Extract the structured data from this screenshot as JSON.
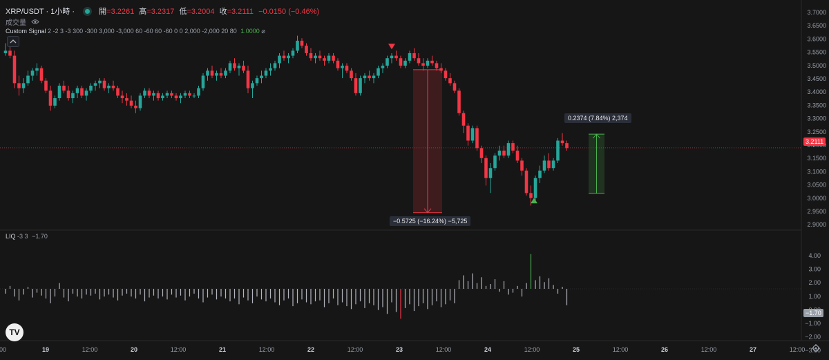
{
  "header": {
    "symbol": "XRP/USDT · 1小時 ·",
    "open_label": "開",
    "open": "=3.2261",
    "high_label": "高",
    "high": "=3.2317",
    "low_label": "低",
    "low": "=3.2004",
    "close_label": "收",
    "close": "=3.2111",
    "change": "−0.0150 (−0.46%)",
    "volume_label": "成交量",
    "indicator_name": "Custom Signal",
    "indicator_args": "2 -2 3 -3 300 -300 3,000 -3,000 60 -60 60 -60 0 0 2,000 -2,000 20 80",
    "indicator_value": "1.0000",
    "indicator_suffix": "⌀",
    "liq_name": "LIQ",
    "liq_args": "-3 3",
    "liq_value": "−1.70"
  },
  "colors": {
    "up": "#26a69a",
    "down": "#f23645",
    "green_bright": "#4caf50",
    "background": "#161616",
    "axis_text": "#9aa0aa",
    "liq_bar": "#b2b5be",
    "measure_red": "#f23645",
    "measure_green": "#4caf50"
  },
  "measurements": {
    "drop": "−0.5725 (−16.24%) −5,725",
    "rise": "0.2374 (7.84%) 2,374"
  },
  "price_axis": {
    "ticks": [
      "3.7000",
      "3.6500",
      "3.6000",
      "3.5500",
      "3.5000",
      "3.4500",
      "3.4000",
      "3.3500",
      "3.3000",
      "3.2500",
      "3.2000",
      "3.1500",
      "3.1000",
      "3.0500",
      "3.0000",
      "2.9500",
      "2.9000"
    ],
    "current": "3.2111"
  },
  "liq_axis": {
    "ticks": [
      "4.00",
      "3.00",
      "2.00",
      "1.00",
      "0.00",
      "−1.00",
      "−2.00",
      "−3.00"
    ],
    "current": "−1.70"
  },
  "time_axis": {
    "labels": [
      "00",
      "19",
      "12:00",
      "20",
      "12:00",
      "21",
      "12:00",
      "22",
      "12:00",
      "23",
      "12:00",
      "24",
      "12:00",
      "25",
      "12:00",
      "26",
      "12:00",
      "27",
      "12:00"
    ]
  },
  "icons": [
    "eye-icon",
    "chevron-up-icon",
    "tradingview-logo",
    "settings-icon"
  ],
  "logo_text": "TV",
  "chart_data": {
    "type": "candlestick",
    "price_range": [
      2.89,
      3.72
    ],
    "drop": {
      "from": 3.524,
      "to": 2.9515,
      "change": -0.5725,
      "percent": -16.24
    },
    "rise": {
      "from": 3.0286,
      "to": 3.266,
      "change": 0.2374,
      "percent": 7.84
    },
    "sell_signal_price": 3.6,
    "buy_signal_price": 3.0,
    "ohlc": [
      [
        3.59,
        3.63,
        3.58,
        3.6
      ],
      [
        3.6,
        3.62,
        3.57,
        3.58
      ],
      [
        3.58,
        3.6,
        3.45,
        3.47
      ],
      [
        3.47,
        3.5,
        3.42,
        3.45
      ],
      [
        3.45,
        3.49,
        3.43,
        3.47
      ],
      [
        3.47,
        3.52,
        3.46,
        3.5
      ],
      [
        3.5,
        3.53,
        3.48,
        3.52
      ],
      [
        3.52,
        3.55,
        3.5,
        3.53
      ],
      [
        3.53,
        3.54,
        3.47,
        3.48
      ],
      [
        3.48,
        3.49,
        3.43,
        3.44
      ],
      [
        3.44,
        3.46,
        3.36,
        3.38
      ],
      [
        3.38,
        3.42,
        3.37,
        3.41
      ],
      [
        3.41,
        3.47,
        3.4,
        3.46
      ],
      [
        3.46,
        3.48,
        3.43,
        3.44
      ],
      [
        3.44,
        3.46,
        3.4,
        3.41
      ],
      [
        3.41,
        3.44,
        3.39,
        3.43
      ],
      [
        3.43,
        3.46,
        3.41,
        3.45
      ],
      [
        3.45,
        3.46,
        3.41,
        3.42
      ],
      [
        3.42,
        3.45,
        3.4,
        3.44
      ],
      [
        3.44,
        3.47,
        3.43,
        3.46
      ],
      [
        3.46,
        3.48,
        3.44,
        3.47
      ],
      [
        3.47,
        3.49,
        3.45,
        3.48
      ],
      [
        3.48,
        3.49,
        3.44,
        3.45
      ],
      [
        3.45,
        3.47,
        3.43,
        3.46
      ],
      [
        3.46,
        3.48,
        3.44,
        3.45
      ],
      [
        3.45,
        3.46,
        3.41,
        3.42
      ],
      [
        3.42,
        3.44,
        3.39,
        3.41
      ],
      [
        3.41,
        3.43,
        3.38,
        3.4
      ],
      [
        3.4,
        3.42,
        3.37,
        3.38
      ],
      [
        3.38,
        3.4,
        3.35,
        3.37
      ],
      [
        3.37,
        3.43,
        3.36,
        3.42
      ],
      [
        3.42,
        3.45,
        3.41,
        3.44
      ],
      [
        3.44,
        3.45,
        3.41,
        3.42
      ],
      [
        3.42,
        3.44,
        3.4,
        3.43
      ],
      [
        3.43,
        3.44,
        3.4,
        3.41
      ],
      [
        3.41,
        3.43,
        3.4,
        3.42
      ],
      [
        3.42,
        3.44,
        3.41,
        3.43
      ],
      [
        3.43,
        3.44,
        3.41,
        3.42
      ],
      [
        3.42,
        3.43,
        3.4,
        3.41
      ],
      [
        3.41,
        3.43,
        3.39,
        3.42
      ],
      [
        3.42,
        3.44,
        3.41,
        3.43
      ],
      [
        3.43,
        3.44,
        3.41,
        3.42
      ],
      [
        3.42,
        3.43,
        3.41,
        3.42
      ],
      [
        3.42,
        3.46,
        3.41,
        3.45
      ],
      [
        3.45,
        3.51,
        3.44,
        3.5
      ],
      [
        3.5,
        3.53,
        3.48,
        3.52
      ],
      [
        3.52,
        3.54,
        3.49,
        3.5
      ],
      [
        3.5,
        3.52,
        3.48,
        3.51
      ],
      [
        3.51,
        3.53,
        3.49,
        3.5
      ],
      [
        3.5,
        3.53,
        3.49,
        3.52
      ],
      [
        3.52,
        3.56,
        3.51,
        3.55
      ],
      [
        3.55,
        3.57,
        3.52,
        3.53
      ],
      [
        3.53,
        3.55,
        3.5,
        3.54
      ],
      [
        3.54,
        3.56,
        3.51,
        3.52
      ],
      [
        3.52,
        3.54,
        3.43,
        3.45
      ],
      [
        3.45,
        3.48,
        3.41,
        3.47
      ],
      [
        3.47,
        3.5,
        3.46,
        3.49
      ],
      [
        3.49,
        3.52,
        3.47,
        3.5
      ],
      [
        3.5,
        3.53,
        3.49,
        3.52
      ],
      [
        3.52,
        3.55,
        3.5,
        3.53
      ],
      [
        3.53,
        3.56,
        3.52,
        3.55
      ],
      [
        3.55,
        3.59,
        3.53,
        3.58
      ],
      [
        3.58,
        3.6,
        3.56,
        3.57
      ],
      [
        3.57,
        3.59,
        3.55,
        3.58
      ],
      [
        3.58,
        3.61,
        3.57,
        3.6
      ],
      [
        3.6,
        3.66,
        3.59,
        3.64
      ],
      [
        3.64,
        3.65,
        3.61,
        3.62
      ],
      [
        3.62,
        3.63,
        3.58,
        3.59
      ],
      [
        3.59,
        3.61,
        3.56,
        3.57
      ],
      [
        3.57,
        3.59,
        3.55,
        3.58
      ],
      [
        3.58,
        3.6,
        3.56,
        3.57
      ],
      [
        3.57,
        3.58,
        3.54,
        3.56
      ],
      [
        3.56,
        3.59,
        3.55,
        3.58
      ],
      [
        3.58,
        3.59,
        3.55,
        3.56
      ],
      [
        3.56,
        3.57,
        3.52,
        3.53
      ],
      [
        3.53,
        3.55,
        3.49,
        3.54
      ],
      [
        3.54,
        3.55,
        3.51,
        3.52
      ],
      [
        3.52,
        3.53,
        3.48,
        3.49
      ],
      [
        3.49,
        3.51,
        3.42,
        3.43
      ],
      [
        3.43,
        3.5,
        3.42,
        3.49
      ],
      [
        3.49,
        3.51,
        3.47,
        3.5
      ],
      [
        3.5,
        3.52,
        3.48,
        3.49
      ],
      [
        3.49,
        3.51,
        3.47,
        3.5
      ],
      [
        3.5,
        3.54,
        3.49,
        3.53
      ],
      [
        3.53,
        3.55,
        3.51,
        3.54
      ],
      [
        3.54,
        3.58,
        3.53,
        3.57
      ],
      [
        3.57,
        3.59,
        3.55,
        3.58
      ],
      [
        3.58,
        3.6,
        3.56,
        3.57
      ],
      [
        3.57,
        3.58,
        3.53,
        3.54
      ],
      [
        3.54,
        3.57,
        3.53,
        3.56
      ],
      [
        3.56,
        3.6,
        3.55,
        3.59
      ],
      [
        3.59,
        3.61,
        3.56,
        3.57
      ],
      [
        3.57,
        3.59,
        3.54,
        3.55
      ],
      [
        3.55,
        3.57,
        3.52,
        3.54
      ],
      [
        3.54,
        3.57,
        3.53,
        3.56
      ],
      [
        3.56,
        3.58,
        3.54,
        3.55
      ],
      [
        3.55,
        3.56,
        3.52,
        3.53
      ],
      [
        3.53,
        3.55,
        3.51,
        3.52
      ],
      [
        3.52,
        3.53,
        3.48,
        3.49
      ],
      [
        3.49,
        3.51,
        3.46,
        3.47
      ],
      [
        3.47,
        3.48,
        3.43,
        3.44
      ],
      [
        3.44,
        3.45,
        3.34,
        3.35
      ],
      [
        3.35,
        3.36,
        3.27,
        3.3
      ],
      [
        3.3,
        3.31,
        3.22,
        3.24
      ],
      [
        3.24,
        3.3,
        3.23,
        3.29
      ],
      [
        3.29,
        3.3,
        3.2,
        3.21
      ],
      [
        3.21,
        3.22,
        3.15,
        3.17
      ],
      [
        3.17,
        3.18,
        3.06,
        3.09
      ],
      [
        3.09,
        3.15,
        3.03,
        3.13
      ],
      [
        3.13,
        3.19,
        3.12,
        3.18
      ],
      [
        3.18,
        3.22,
        3.16,
        3.2
      ],
      [
        3.2,
        3.22,
        3.17,
        3.18
      ],
      [
        3.18,
        3.24,
        3.17,
        3.23
      ],
      [
        3.23,
        3.24,
        3.19,
        3.2
      ],
      [
        3.2,
        3.22,
        3.15,
        3.16
      ],
      [
        3.16,
        3.17,
        3.1,
        3.12
      ],
      [
        3.12,
        3.13,
        3.02,
        3.03
      ],
      [
        3.03,
        3.06,
        2.98,
        3.01
      ],
      [
        3.01,
        3.1,
        3.0,
        3.09
      ],
      [
        3.09,
        3.14,
        3.07,
        3.12
      ],
      [
        3.12,
        3.18,
        3.11,
        3.16
      ],
      [
        3.16,
        3.19,
        3.12,
        3.13
      ],
      [
        3.13,
        3.17,
        3.12,
        3.16
      ],
      [
        3.16,
        3.25,
        3.15,
        3.24
      ],
      [
        3.24,
        3.27,
        3.22,
        3.23
      ],
      [
        3.23,
        3.24,
        3.2,
        3.21
      ]
    ],
    "liq_values": [
      -0.5,
      0.3,
      -0.8,
      -1.2,
      -0.6,
      0.2,
      -0.9,
      -0.4,
      -0.7,
      -1.0,
      -1.5,
      -0.8,
      0.6,
      -0.9,
      -1.3,
      -0.5,
      -0.8,
      -1.0,
      -0.6,
      -0.7,
      -0.5,
      -1.1,
      -0.8,
      -0.6,
      -0.9,
      -1.2,
      -0.7,
      -0.5,
      -0.8,
      -1.0,
      -0.6,
      -1.3,
      -0.9,
      -0.7,
      -1.0,
      -0.8,
      -1.1,
      -0.6,
      -0.9,
      -0.7,
      -1.2,
      -0.8,
      -0.5,
      -1.0,
      -1.4,
      -0.9,
      -0.6,
      -1.1,
      -0.8,
      -1.0,
      -1.3,
      -1.0,
      -1.6,
      -0.9,
      -1.2,
      -1.5,
      -0.8,
      -1.1,
      -1.3,
      -1.0,
      -1.4,
      -1.7,
      -1.2,
      -1.0,
      -1.8,
      -1.5,
      -1.1,
      -1.4,
      -1.6,
      -1.3,
      -1.2,
      -1.9,
      -1.5,
      -1.0,
      -1.7,
      -1.4,
      -1.8,
      -2.1,
      -1.6,
      -1.3,
      -2.0,
      -1.5,
      -1.7,
      -2.2,
      -1.9,
      -2.6,
      -1.4,
      -2.4,
      -3.1,
      -2.0,
      -1.6,
      -2.3,
      -1.8,
      -1.5,
      -2.1,
      -1.7,
      -1.3,
      -1.9,
      -1.6,
      -1.2,
      -1.5,
      0.9,
      1.4,
      0.8,
      1.6,
      0.6,
      1.2,
      0.3,
      0.5,
      1.0,
      -0.3,
      0.8,
      -0.6,
      -0.4,
      0.3,
      -0.8,
      0.6,
      3.6,
      0.9,
      1.3,
      0.7,
      1.1,
      0.4,
      -0.5,
      0.2,
      -1.7
    ]
  }
}
